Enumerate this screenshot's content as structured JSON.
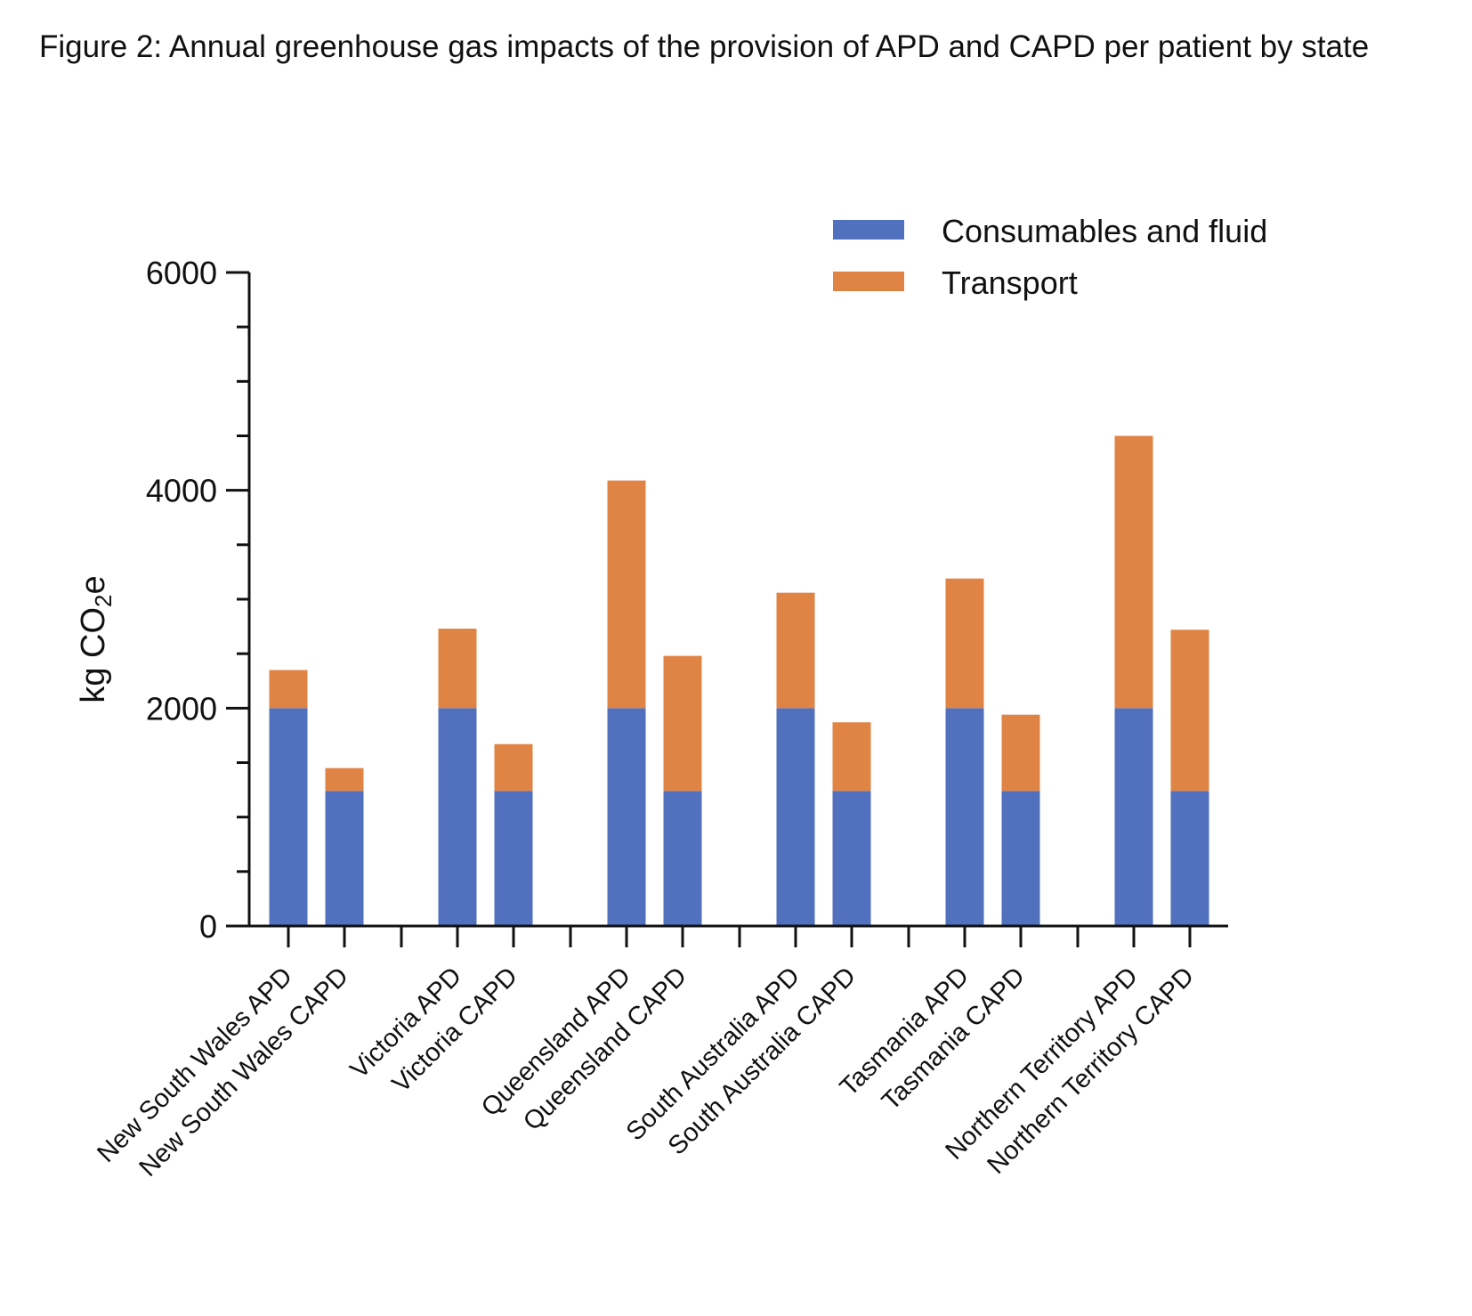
{
  "figure_caption": "Figure 2: Annual greenhouse gas impacts of the provision of APD and CAPD per patient by state",
  "colors": {
    "consumables": "#5170BE",
    "transport": "#E08445",
    "axis": "#111111"
  },
  "chart_data": {
    "type": "bar",
    "stacked": true,
    "title": "",
    "xlabel": "",
    "ylabel": "kg CO₂e",
    "ylim": [
      0,
      6000
    ],
    "yticks": [
      0,
      2000,
      4000,
      6000
    ],
    "grid": false,
    "legend_position": "top-right",
    "groups": [
      [
        "New South Wales APD",
        "New South Wales CAPD"
      ],
      [
        "Victoria APD",
        "Victoria CAPD"
      ],
      [
        "Queensland APD",
        "Queensland CAPD"
      ],
      [
        "South Australia APD",
        "South Australia CAPD"
      ],
      [
        "Tasmania APD",
        "Tasmania CAPD"
      ],
      [
        "Northern Territory APD",
        "Northern Territory CAPD"
      ]
    ],
    "categories": [
      "New South Wales APD",
      "New South Wales CAPD",
      "Victoria APD",
      "Victoria CAPD",
      "Queensland APD",
      "Queensland CAPD",
      "South Australia APD",
      "South Australia CAPD",
      "Tasmania APD",
      "Tasmania CAPD",
      "Northern Territory APD",
      "Northern Territory CAPD"
    ],
    "series": [
      {
        "name": "Consumables and fluid",
        "color": "#5170BE",
        "values": [
          2000,
          1240,
          2000,
          1240,
          2000,
          1240,
          2000,
          1240,
          2000,
          1240,
          2000,
          1240
        ]
      },
      {
        "name": "Transport",
        "color": "#E08445",
        "values": [
          350,
          210,
          730,
          430,
          2090,
          1240,
          1060,
          630,
          1190,
          700,
          2500,
          1480
        ]
      }
    ]
  }
}
